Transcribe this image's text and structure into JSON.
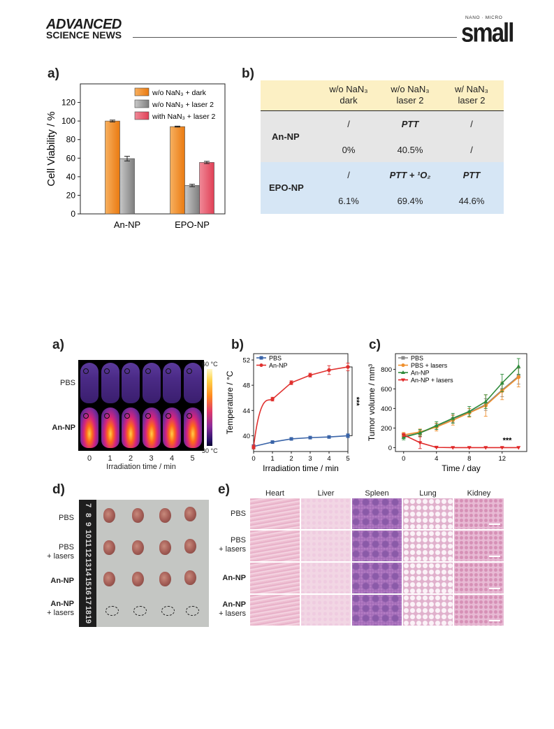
{
  "header": {
    "logo_line1": "ADVANCED",
    "logo_line2": "SCIENCE NEWS",
    "journal_prefix": "NANO · MICRO",
    "journal_name": "small"
  },
  "figure1": {
    "panel_a_label": "a)",
    "panel_b_label": "b)"
  },
  "figure2": {
    "panel_a_label": "a)",
    "panel_b_label": "b)",
    "panel_c_label": "c)",
    "panel_d_label": "d)",
    "panel_e_label": "e)",
    "thermal": {
      "rows": [
        "PBS",
        "An-NP"
      ],
      "times": [
        "0",
        "1",
        "2",
        "3",
        "4",
        "5"
      ],
      "xlabel": "Irradiation time / min",
      "colorbar_max": "60 °C",
      "colorbar_min": "30 °C"
    },
    "tumor_photo": {
      "rows": [
        {
          "line1": "PBS",
          "line2": ""
        },
        {
          "line1": "PBS",
          "line2": "+ lasers"
        },
        {
          "line1": "An-NP",
          "line2": ""
        },
        {
          "line1": "An-NP",
          "line2": "+ lasers"
        }
      ],
      "ruler": [
        "7",
        "8",
        "9",
        "10",
        "11",
        "12",
        "13",
        "14",
        "15",
        "16",
        "17",
        "18",
        "19"
      ]
    },
    "histology": {
      "columns": [
        "Heart",
        "Liver",
        "Spleen",
        "Lung",
        "Kidney"
      ],
      "rows": [
        {
          "line1": "PBS",
          "line2": ""
        },
        {
          "line1": "PBS",
          "line2": "+ lasers"
        },
        {
          "line1": "An-NP",
          "line2": ""
        },
        {
          "line1": "An-NP",
          "line2": "+ lasers"
        }
      ]
    }
  },
  "chart_data": [
    {
      "type": "bar",
      "panel": "Figure 1a",
      "categories": [
        "An-NP",
        "EPO-NP"
      ],
      "series": [
        {
          "name": "w/o NaN₃ + dark",
          "values": [
            100,
            94
          ],
          "errors": [
            1,
            0.5
          ],
          "color": "#f39232"
        },
        {
          "name": "w/o NaN₃ + laser 2",
          "values": [
            59.5,
            30.6
          ],
          "errors": [
            2.5,
            1.3
          ],
          "color": "#a4a4a4"
        },
        {
          "name": "with NaN₃ + laser 2",
          "values": [
            null,
            55.4
          ],
          "errors": [
            null,
            1.2
          ],
          "color": "#e8566a"
        }
      ],
      "ylabel": "Cell Viability / %",
      "ylim": [
        0,
        140
      ],
      "yticks": [
        "0",
        "20",
        "40",
        "60",
        "80",
        "100",
        "120"
      ],
      "legend": "top-right"
    },
    {
      "type": "table",
      "panel": "Figure 1b",
      "columns": [
        {
          "line1": "w/o NaN₃",
          "line2": "dark"
        },
        {
          "line1": "w/o NaN₃",
          "line2": "laser 2"
        },
        {
          "line1": "w/ NaN₃",
          "line2": "laser 2"
        }
      ],
      "rows": [
        {
          "name": "An-NP",
          "mechanism": [
            "/",
            "PTT",
            "/"
          ],
          "values": [
            "0%",
            "40.5%",
            "/"
          ]
        },
        {
          "name": "EPO-NP",
          "mechanism": [
            "/",
            "PTT + ¹O₂",
            "PTT"
          ],
          "values": [
            "6.1%",
            "69.4%",
            "44.6%"
          ]
        }
      ]
    },
    {
      "type": "line",
      "panel": "Figure 2b",
      "x": [
        0,
        1,
        2,
        3,
        4,
        5
      ],
      "series": [
        {
          "name": "PBS",
          "values": [
            38.3,
            39.0,
            39.5,
            39.7,
            39.8,
            40.0
          ],
          "errors": [
            0.3,
            0.2,
            0.2,
            0.2,
            0.2,
            0.3
          ],
          "color": "#3a64a8"
        },
        {
          "name": "An-NP",
          "values": [
            38.2,
            45.8,
            48.4,
            49.6,
            50.4,
            50.9
          ],
          "errors": [
            0.3,
            0.3,
            0.3,
            0.3,
            0.7,
            0.6
          ],
          "color": "#e0302e"
        }
      ],
      "xlabel": "Irradiation time / min",
      "ylabel": "Temperature / °C",
      "xlim": [
        0,
        5
      ],
      "ylim": [
        37.5,
        53
      ],
      "yticks": [
        "40",
        "44",
        "48",
        "52"
      ],
      "xticks": [
        "0",
        "1",
        "2",
        "3",
        "4",
        "5"
      ],
      "annotation": "***",
      "legend": "top-left"
    },
    {
      "type": "line",
      "panel": "Figure 2c",
      "x": [
        0,
        2,
        4,
        6,
        8,
        10,
        12,
        14
      ],
      "series": [
        {
          "name": "PBS",
          "values": [
            115,
            150,
            215,
            295,
            360,
            440,
            590,
            730
          ],
          "errors": [
            20,
            25,
            30,
            40,
            40,
            60,
            70,
            80
          ],
          "color": "#8a8a8a"
        },
        {
          "name": "PBS + lasers",
          "values": [
            130,
            160,
            210,
            280,
            355,
            430,
            580,
            720
          ],
          "errors": [
            25,
            30,
            40,
            50,
            45,
            110,
            90,
            100
          ],
          "color": "#f0902e"
        },
        {
          "name": "An-NP",
          "values": [
            105,
            150,
            225,
            300,
            370,
            470,
            660,
            830
          ],
          "errors": [
            25,
            35,
            40,
            50,
            50,
            70,
            90,
            80
          ],
          "color": "#2e8a3a"
        },
        {
          "name": "An-NP + lasers",
          "values": [
            130,
            50,
            2,
            0,
            0,
            0,
            0,
            0
          ],
          "errors": [
            15,
            60,
            2,
            0,
            0,
            0,
            0,
            0
          ],
          "color": "#e02828"
        }
      ],
      "xlabel": "Time / day",
      "ylabel": "Tumor volume / mm³",
      "xlim": [
        -1,
        15
      ],
      "ylim": [
        -40,
        960
      ],
      "yticks": [
        "0",
        "200",
        "400",
        "600",
        "800"
      ],
      "xticks": [
        "0",
        "4",
        "8",
        "12"
      ],
      "annotation": "***",
      "legend": "top-left"
    }
  ]
}
